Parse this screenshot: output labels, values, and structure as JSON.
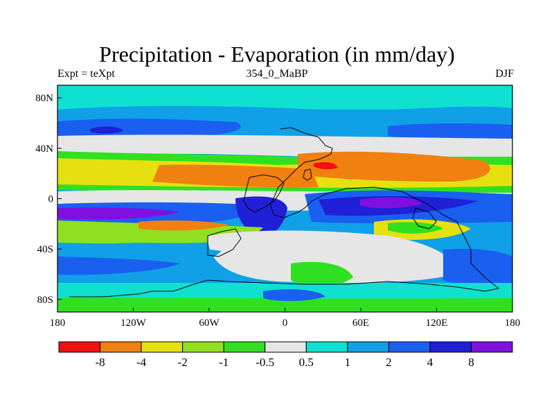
{
  "title": "Precipitation - Evaporation (in mm/day)",
  "subtitle_left": "Expt = teXpt",
  "subtitle_center": "354_0_MaBP",
  "subtitle_right": "DJF",
  "colors": {
    "ocean_mid": "#0fa0e8",
    "north_band": "#1a78f0",
    "high_lat": "#10e0d0",
    "dry_orange": "#f08010",
    "dry_yellow": "#e6e010",
    "dry_lime": "#90e020",
    "dry_green": "#10e020",
    "neutral": "#e6e6e6",
    "wet_blue": "#1040e8",
    "wet_deep": "#2010d8",
    "wet_violet": "#8010e0",
    "dry_red": "#f01010",
    "coast": "#000000"
  },
  "map": {
    "projection": "cylindrical-equidistant",
    "lon_range": [
      -180,
      180
    ],
    "lat_range": [
      -90,
      90
    ],
    "x_ticks": [
      "180",
      "120W",
      "60W",
      "0",
      "60E",
      "120E",
      "180"
    ],
    "y_ticks": [
      "80N",
      "40N",
      "0",
      "40S",
      "80S"
    ]
  },
  "colorbar": {
    "colors": [
      "#f01010",
      "#f08010",
      "#e6e010",
      "#90e020",
      "#30e020",
      "#e6e6e6",
      "#10e0d0",
      "#0fa0e8",
      "#1a60f0",
      "#2020d8",
      "#8010e0"
    ],
    "labels": [
      "-8",
      "-4",
      "-2",
      "-1",
      "-0.5",
      "0.5",
      "1",
      "2",
      "4",
      "8"
    ]
  }
}
